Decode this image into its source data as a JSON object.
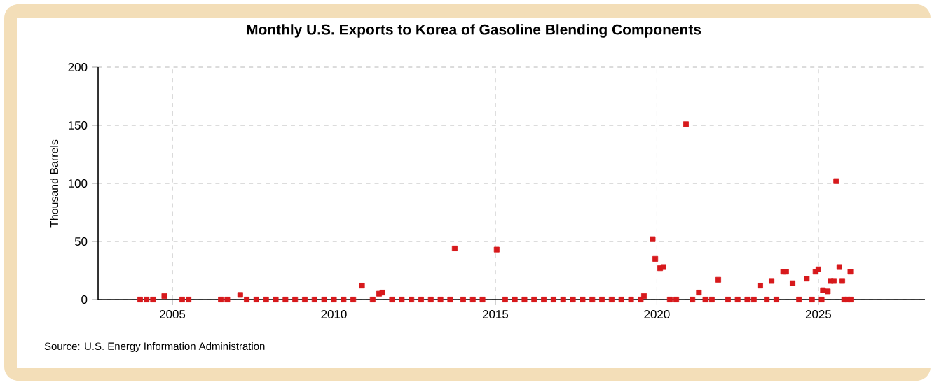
{
  "chart_data": {
    "type": "scatter",
    "title": "Monthly U.S. Exports to Korea of Gasoline Blending Components",
    "ylabel": "Thousand Barrels",
    "annotations": [
      "Source: U.S. Energy Information Administration"
    ],
    "x": [
      2004.0,
      2004.2,
      2004.4,
      2004.75,
      2005.3,
      2005.5,
      2006.5,
      2006.7,
      2007.1,
      2007.3,
      2007.6,
      2007.9,
      2008.2,
      2008.5,
      2008.8,
      2009.1,
      2009.4,
      2009.7,
      2010.0,
      2010.3,
      2010.6,
      2010.87,
      2011.2,
      2011.4,
      2011.5,
      2011.8,
      2012.1,
      2012.4,
      2012.7,
      2013.0,
      2013.3,
      2013.6,
      2013.74,
      2014.0,
      2014.3,
      2014.6,
      2015.04,
      2015.3,
      2015.6,
      2015.9,
      2016.2,
      2016.5,
      2016.8,
      2017.1,
      2017.4,
      2017.7,
      2018.0,
      2018.3,
      2018.6,
      2018.9,
      2019.2,
      2019.5,
      2019.6,
      2019.87,
      2019.95,
      2020.1,
      2020.2,
      2020.4,
      2020.6,
      2020.9,
      2021.1,
      2021.3,
      2021.5,
      2021.7,
      2021.9,
      2022.2,
      2022.5,
      2022.8,
      2023.0,
      2023.2,
      2023.4,
      2023.55,
      2023.7,
      2023.91,
      2024.0,
      2024.2,
      2024.4,
      2024.64,
      2024.8,
      2024.91,
      2025.0,
      2025.1,
      2025.14,
      2025.29,
      2025.38,
      2025.48,
      2025.55,
      2025.65,
      2025.74,
      2025.8,
      2025.9,
      2025.99,
      2026.0
    ],
    "values": [
      0,
      0,
      0,
      3,
      0,
      0,
      0,
      0,
      4,
      0,
      0,
      0,
      0,
      0,
      0,
      0,
      0,
      0,
      0,
      0,
      0,
      12,
      0,
      5,
      6,
      0,
      0,
      0,
      0,
      0,
      0,
      0,
      44,
      0,
      0,
      0,
      43,
      0,
      0,
      0,
      0,
      0,
      0,
      0,
      0,
      0,
      0,
      0,
      0,
      0,
      0,
      0,
      3,
      52,
      35,
      27,
      28,
      0,
      0,
      151,
      0,
      6,
      0,
      0,
      17,
      0,
      0,
      0,
      0,
      12,
      0,
      16,
      0,
      24,
      24,
      14,
      0,
      18,
      0,
      24,
      26,
      0,
      8,
      7,
      16,
      16,
      102,
      28,
      16,
      0,
      0,
      24,
      0
    ],
    "color": "#d7191c",
    "marker": "square",
    "xlim": [
      2002.7,
      2028.3
    ],
    "ylim": [
      0,
      200
    ],
    "xticks": [
      2005,
      2010,
      2015,
      2020,
      2025
    ],
    "yticks": [
      0,
      50,
      100,
      150,
      200
    ],
    "grid": true
  }
}
